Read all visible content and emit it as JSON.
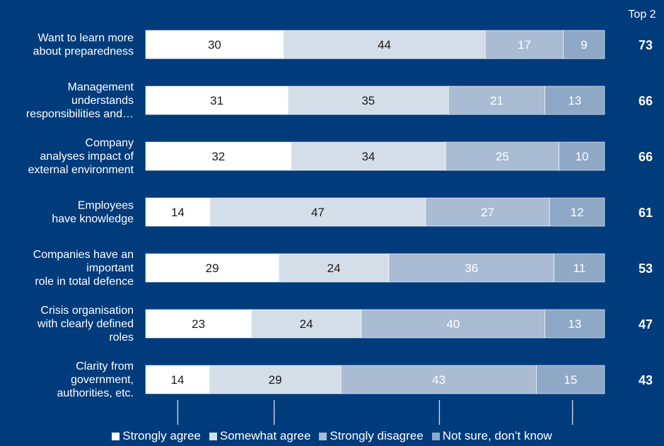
{
  "chart_data": {
    "type": "bar",
    "orientation": "horizontal",
    "stacked": true,
    "top2_header": "Top 2",
    "categories": [
      [
        "Want to learn more",
        "about preparedness"
      ],
      [
        "Management",
        "understands",
        "responsibilities and…"
      ],
      [
        "Company",
        "analyses impact of",
        "external environment"
      ],
      [
        "Employees",
        "have knowledge"
      ],
      [
        "Companies have an",
        "important",
        "role in total defence"
      ],
      [
        "Crisis organisation",
        "with clearly defined",
        "roles"
      ],
      [
        "Clarity from",
        "government,",
        "authorities, etc."
      ]
    ],
    "series": [
      {
        "name": "Strongly agree",
        "color": "#ffffff",
        "label_color": "#1a1a1a",
        "values": [
          30,
          31,
          32,
          14,
          29,
          23,
          14
        ]
      },
      {
        "name": "Somewhat agree",
        "color": "#D4DEE8",
        "label_color": "#1a1a1a",
        "values": [
          44,
          35,
          34,
          47,
          24,
          24,
          29
        ]
      },
      {
        "name": "Strongly disagree",
        "color": "#A9BCD3",
        "label_color": "#ffffff",
        "values": [
          17,
          21,
          25,
          27,
          36,
          40,
          43
        ]
      },
      {
        "name": "Not sure, don’t know",
        "color": "#8EA8C6",
        "label_color": "#ffffff",
        "values": [
          9,
          13,
          10,
          12,
          11,
          13,
          15
        ]
      }
    ],
    "top2": [
      73,
      66,
      66,
      61,
      53,
      47,
      43
    ],
    "legend_position": "bottom",
    "grid": false
  },
  "legend": {
    "items": [
      {
        "label": "Strongly agree",
        "color": "#ffffff"
      },
      {
        "label": "Somewhat agree",
        "color": "#D4DEE8"
      },
      {
        "label": "Strongly disagree",
        "color": "#A9BCD3"
      },
      {
        "label": "Not sure, don’t know",
        "color": "#8EA8C6"
      }
    ]
  }
}
